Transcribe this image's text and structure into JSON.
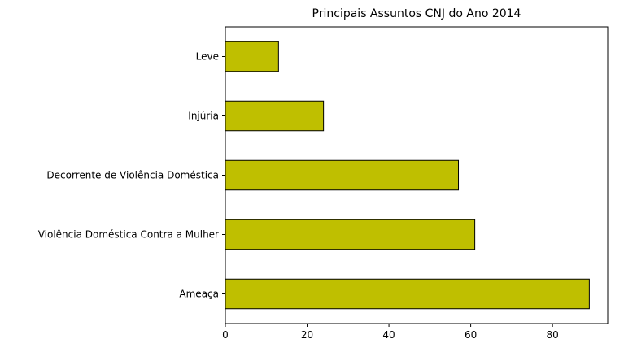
{
  "chart_data": {
    "type": "bar",
    "orientation": "horizontal",
    "title": "Principais Assuntos CNJ do Ano 2014",
    "xlabel": "",
    "ylabel": "",
    "categories": [
      "Ameaça",
      "Violência Doméstica Contra a Mulher",
      "Decorrente de Violência Doméstica",
      "Injúria",
      "Leve"
    ],
    "values": [
      89,
      61,
      57,
      24,
      13
    ],
    "xlim": [
      0,
      93.5
    ],
    "xticks": [
      "0",
      "20",
      "40",
      "60",
      "80"
    ],
    "grid": false,
    "legend": "none",
    "bar_color": "#bfbf00",
    "edge_color": "#000000"
  }
}
